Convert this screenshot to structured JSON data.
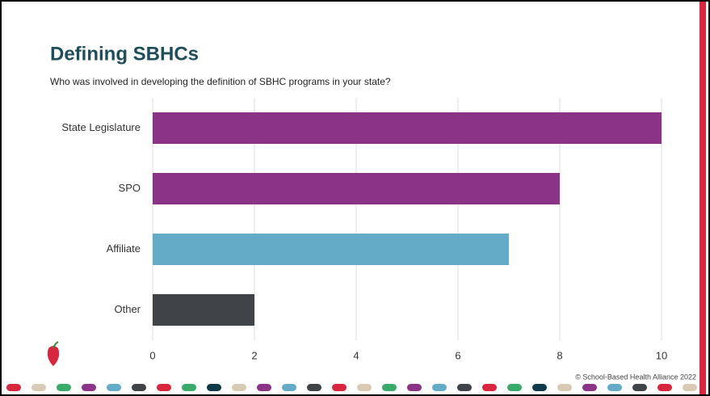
{
  "chart_data": {
    "type": "barh",
    "title": "Defining SBHCs",
    "subtitle": "Who was involved in developing the definition of SBHC programs in your state?",
    "categories": [
      "State Legislature",
      "SPO",
      "Affiliate",
      "Other"
    ],
    "values": [
      10,
      8,
      7,
      2
    ],
    "colors": [
      "#8b3387",
      "#8b3387",
      "#64abc8",
      "#404448"
    ],
    "xlim": [
      0,
      10
    ],
    "xticks": [
      0,
      2,
      4,
      6,
      8,
      10
    ],
    "grid": true,
    "footer": "© School-Based Health Alliance 2022"
  }
}
